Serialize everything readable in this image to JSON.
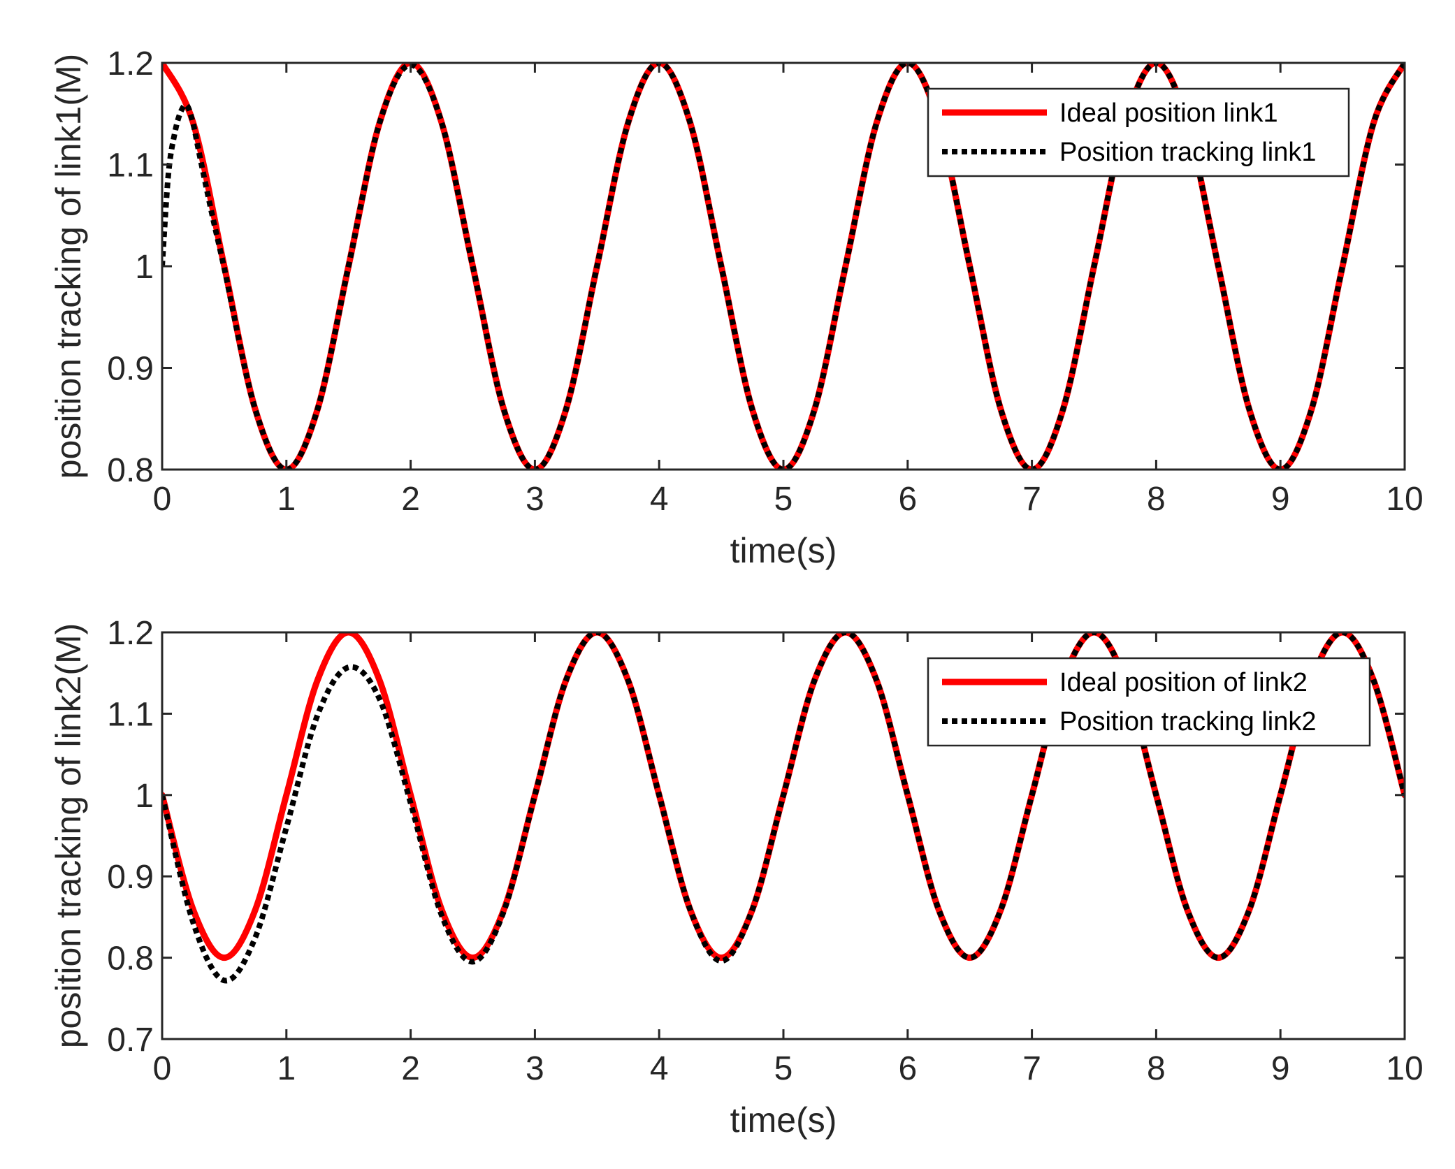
{
  "chart_data": [
    {
      "type": "line",
      "xlabel": "time(s)",
      "ylabel": "position tracking of link1(M)",
      "xlim": [
        0,
        10
      ],
      "ylim": [
        0.8,
        1.2
      ],
      "xticks": [
        0,
        1,
        2,
        3,
        4,
        5,
        6,
        7,
        8,
        9,
        10
      ],
      "xtick_labels": [
        "0",
        "1",
        "2",
        "3",
        "4",
        "5",
        "6",
        "7",
        "8",
        "9",
        "10"
      ],
      "yticks": [
        0.8,
        0.9,
        1.0,
        1.1,
        1.2
      ],
      "ytick_labels": [
        "0.8",
        "0.9",
        "1",
        "1.1",
        "1.2"
      ],
      "grid": false,
      "legend_position": "top-right",
      "series": [
        {
          "name": "Ideal position link1",
          "color": "#ff0000",
          "style": "solid",
          "x": [
            0,
            0.25,
            0.5,
            0.75,
            1,
            1.25,
            1.5,
            1.75,
            2,
            2.25,
            2.5,
            2.75,
            3,
            3.25,
            3.5,
            3.75,
            4,
            4.25,
            4.5,
            4.75,
            5,
            5.25,
            5.5,
            5.75,
            6,
            6.25,
            6.5,
            6.75,
            7,
            7.25,
            7.5,
            7.75,
            8,
            8.25,
            8.5,
            8.75,
            9,
            9.25,
            9.5,
            9.75,
            10
          ],
          "values": [
            1.2,
            1.141,
            1.0,
            0.859,
            0.8,
            0.859,
            1.0,
            1.141,
            1.2,
            1.141,
            1.0,
            0.859,
            0.8,
            0.859,
            1.0,
            1.141,
            1.2,
            1.141,
            1.0,
            0.859,
            0.8,
            0.859,
            1.0,
            1.141,
            1.2,
            1.141,
            1.0,
            0.859,
            0.8,
            0.859,
            1.0,
            1.141,
            1.2,
            1.141,
            1.0,
            0.859,
            0.8,
            0.859,
            1.0,
            1.141,
            1.2
          ]
        },
        {
          "name": "Position tracking link1",
          "color": "#000000",
          "style": "dotted",
          "x": [
            0,
            0.05,
            0.1,
            0.15,
            0.2,
            0.25,
            0.3,
            0.4,
            0.5,
            0.75,
            1,
            1.25,
            1.5,
            1.75,
            2,
            2.25,
            2.5,
            2.75,
            3,
            3.25,
            3.5,
            3.75,
            4,
            4.25,
            4.5,
            4.75,
            5,
            5.25,
            5.5,
            5.75,
            6,
            6.25,
            6.5,
            6.75,
            7,
            7.25,
            7.5,
            7.75,
            8,
            8.25,
            8.5,
            8.75,
            9,
            9.25,
            9.5,
            9.75,
            10
          ],
          "values": [
            1.0,
            1.09,
            1.13,
            1.152,
            1.158,
            1.14,
            1.11,
            1.052,
            0.998,
            0.859,
            0.8,
            0.859,
            1.0,
            1.141,
            1.198,
            1.141,
            1.0,
            0.859,
            0.8,
            0.859,
            1.0,
            1.141,
            1.2,
            1.141,
            1.0,
            0.859,
            0.8,
            0.859,
            1.0,
            1.141,
            1.2,
            1.141,
            1.0,
            0.859,
            0.8,
            0.859,
            1.0,
            1.141,
            1.2,
            1.141,
            1.0,
            0.859,
            0.8,
            0.859,
            1.0,
            1.141,
            1.2
          ]
        }
      ]
    },
    {
      "type": "line",
      "xlabel": "time(s)",
      "ylabel": "position tracking of link2(M)",
      "xlim": [
        0,
        10
      ],
      "ylim": [
        0.7,
        1.2
      ],
      "xticks": [
        0,
        1,
        2,
        3,
        4,
        5,
        6,
        7,
        8,
        9,
        10
      ],
      "xtick_labels": [
        "0",
        "1",
        "2",
        "3",
        "4",
        "5",
        "6",
        "7",
        "8",
        "9",
        "10"
      ],
      "yticks": [
        0.7,
        0.8,
        0.9,
        1.0,
        1.1,
        1.2
      ],
      "ytick_labels": [
        "0.7",
        "0.8",
        "0.9",
        "1",
        "1.1",
        "1.2"
      ],
      "grid": false,
      "legend_position": "top-right",
      "series": [
        {
          "name": "Ideal position of link2",
          "color": "#ff0000",
          "style": "solid",
          "x": [
            0,
            0.25,
            0.5,
            0.75,
            1,
            1.25,
            1.5,
            1.75,
            2,
            2.25,
            2.5,
            2.75,
            3,
            3.25,
            3.5,
            3.75,
            4,
            4.25,
            4.5,
            4.75,
            5,
            5.25,
            5.5,
            5.75,
            6,
            6.25,
            6.5,
            6.75,
            7,
            7.25,
            7.5,
            7.75,
            8,
            8.25,
            8.5,
            8.75,
            9,
            9.25,
            9.5,
            9.75,
            10
          ],
          "values": [
            1.0,
            0.859,
            0.8,
            0.859,
            1.0,
            1.141,
            1.2,
            1.141,
            1.0,
            0.859,
            0.8,
            0.859,
            1.0,
            1.141,
            1.2,
            1.141,
            1.0,
            0.859,
            0.8,
            0.859,
            1.0,
            1.141,
            1.2,
            1.141,
            1.0,
            0.859,
            0.8,
            0.859,
            1.0,
            1.141,
            1.2,
            1.141,
            1.0,
            0.859,
            0.8,
            0.859,
            1.0,
            1.141,
            1.2,
            1.141,
            1.0
          ]
        },
        {
          "name": "Position tracking link2",
          "color": "#000000",
          "style": "dotted",
          "x": [
            0,
            0.25,
            0.5,
            0.75,
            1,
            1.25,
            1.5,
            1.75,
            2,
            2.25,
            2.5,
            2.75,
            3,
            3.25,
            3.5,
            3.75,
            4,
            4.25,
            4.5,
            4.75,
            5,
            5.25,
            5.5,
            5.75,
            6,
            6.25,
            6.5,
            6.75,
            7,
            7.25,
            7.5,
            7.75,
            8,
            8.25,
            8.5,
            8.75,
            9,
            9.25,
            9.5,
            9.75,
            10
          ],
          "values": [
            1.0,
            0.843,
            0.772,
            0.825,
            0.96,
            1.098,
            1.157,
            1.118,
            0.99,
            0.852,
            0.795,
            0.857,
            1.0,
            1.141,
            1.2,
            1.141,
            1.0,
            0.859,
            0.796,
            0.859,
            1.0,
            1.141,
            1.2,
            1.141,
            1.0,
            0.859,
            0.8,
            0.859,
            1.0,
            1.141,
            1.2,
            1.141,
            1.0,
            0.859,
            0.8,
            0.859,
            1.0,
            1.141,
            1.2,
            1.141,
            1.0
          ]
        }
      ]
    }
  ]
}
